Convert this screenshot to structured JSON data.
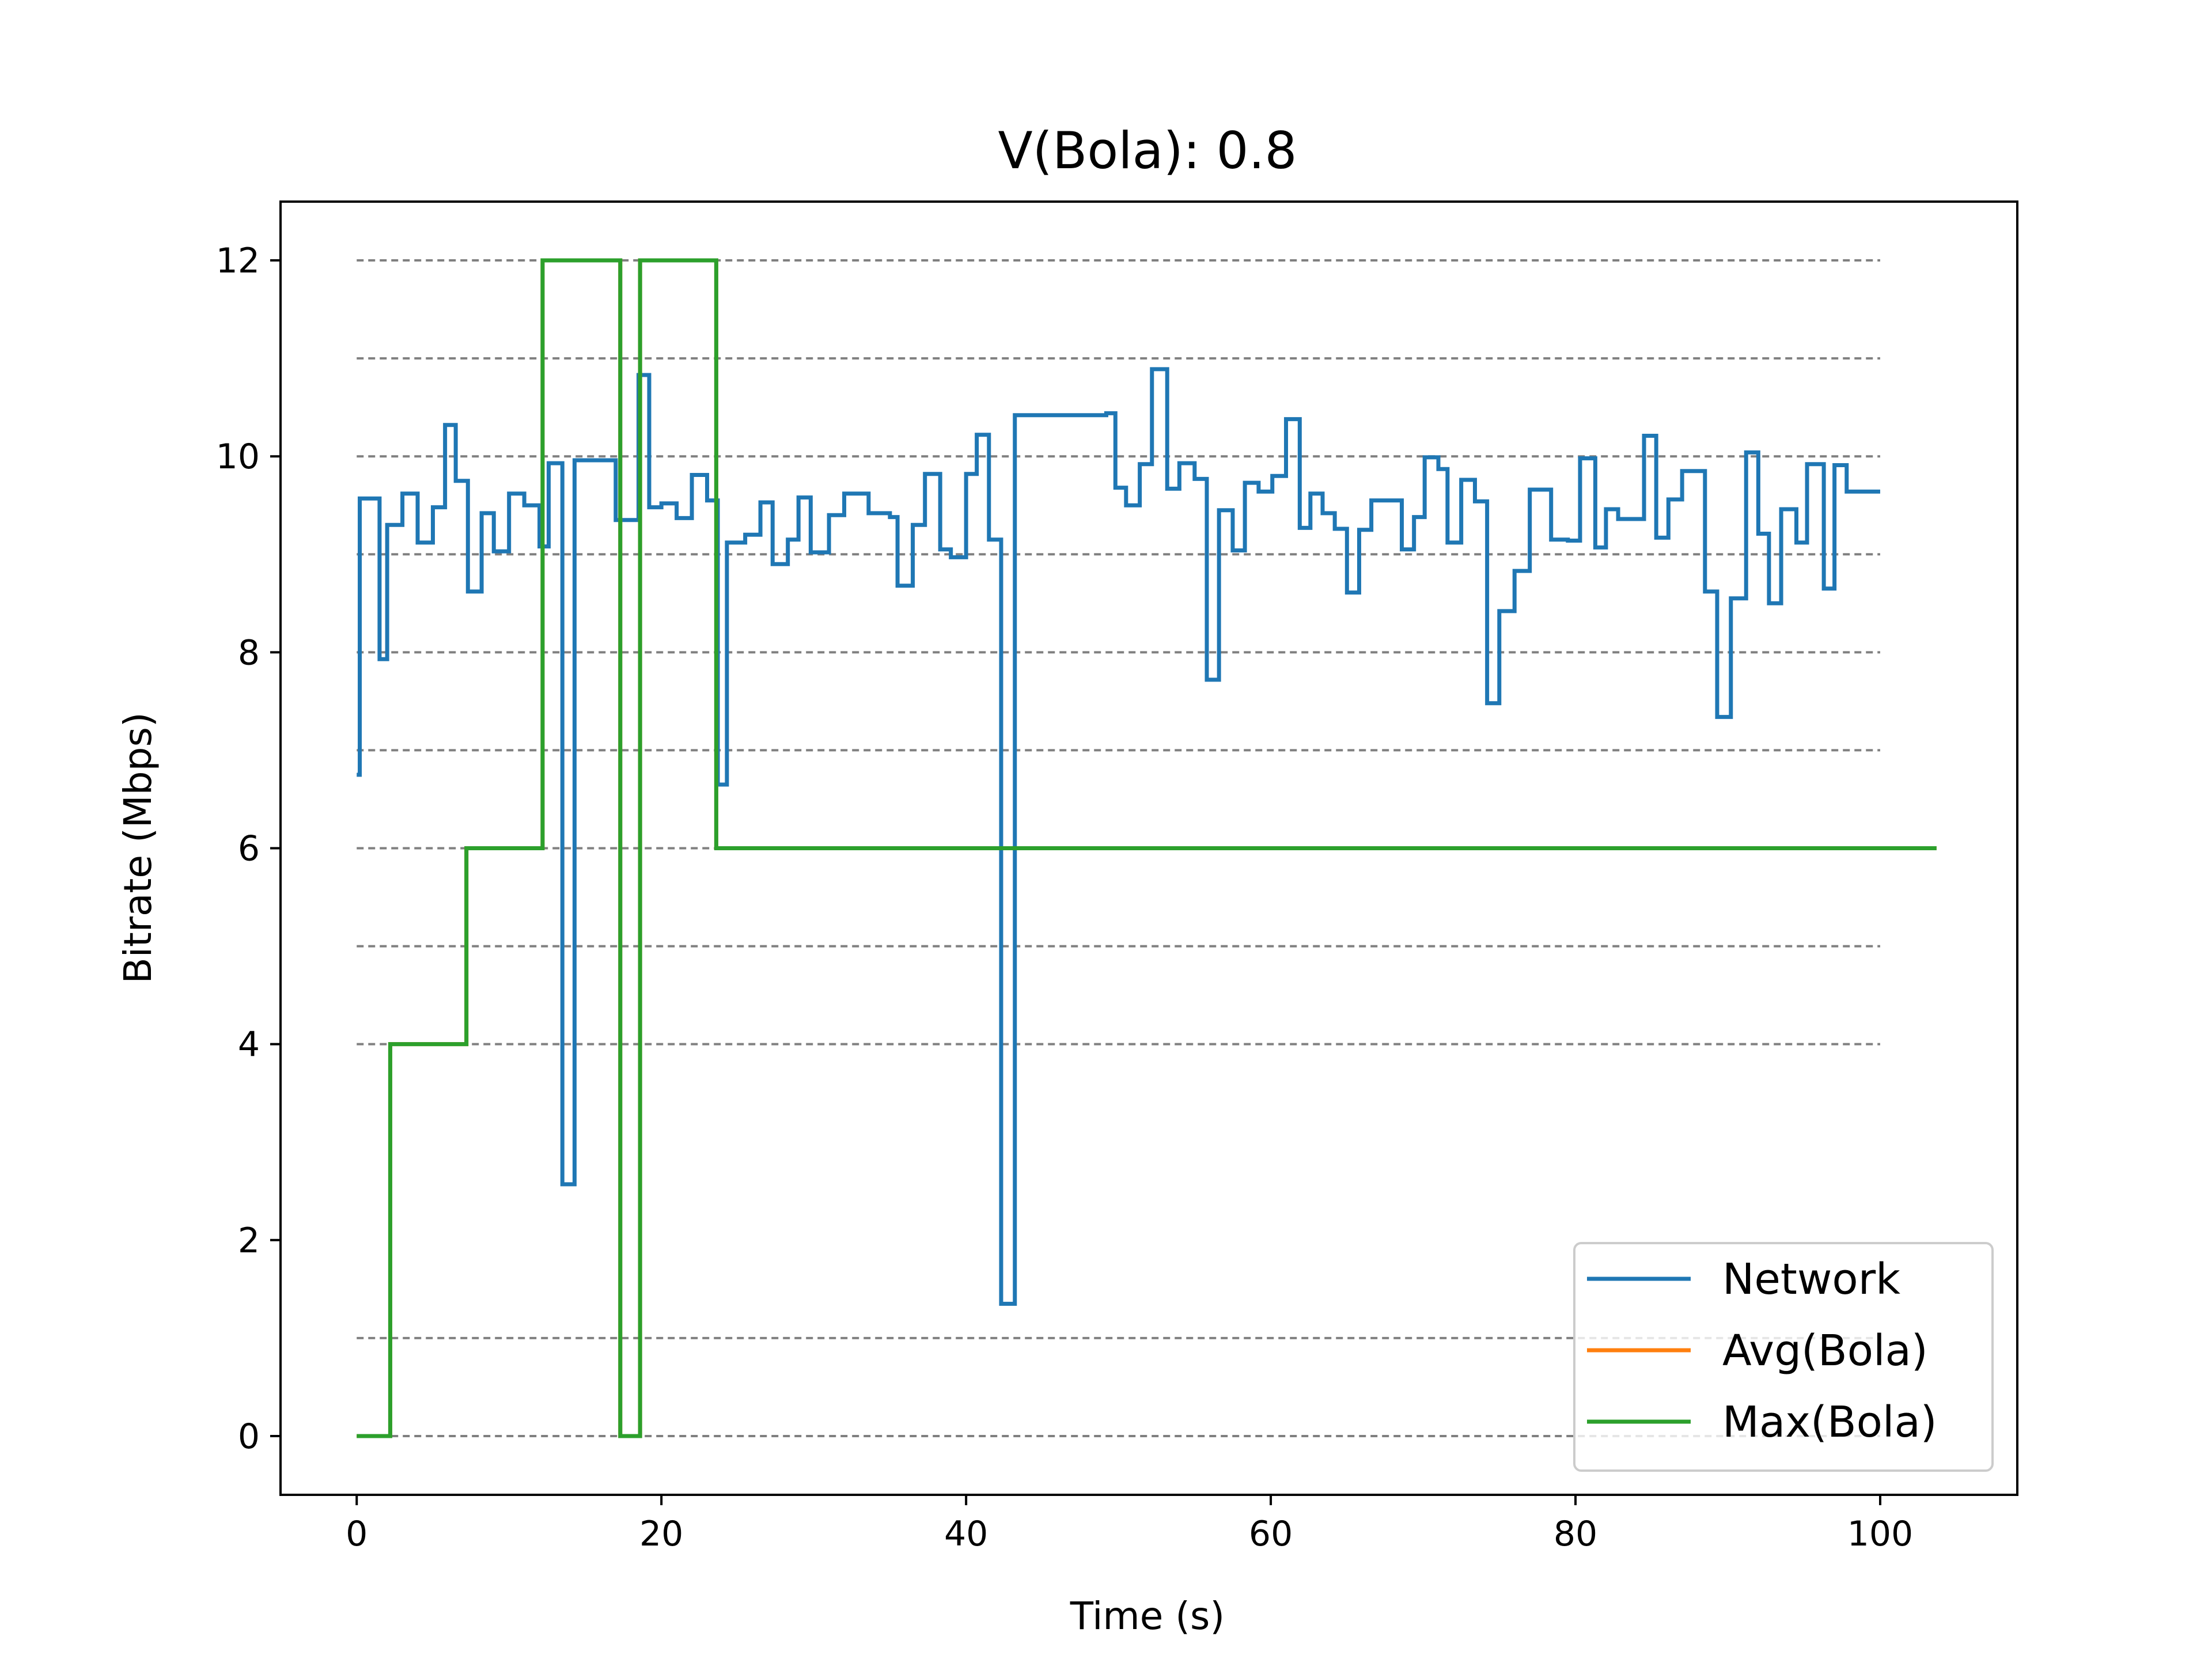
{
  "chart_data": {
    "type": "line",
    "title": "V(Bola): 0.8",
    "xlabel": "Time (s)",
    "ylabel": "Bitrate (Mbps)",
    "xlim": [
      -5,
      109
    ],
    "ylim": [
      -0.6,
      12.6
    ],
    "xticks": [
      0,
      20,
      40,
      60,
      80,
      100
    ],
    "yticks": [
      0,
      2,
      4,
      6,
      8,
      10,
      12
    ],
    "reference_lines": [
      0,
      1,
      4,
      5,
      6,
      7,
      8,
      9,
      10,
      11,
      12
    ],
    "reference_lines_x_range": [
      0,
      100
    ],
    "grid": false,
    "legend_position": "lower-right",
    "series": [
      {
        "name": "Network",
        "color": "#1f77b4",
        "step": true,
        "points": [
          [
            0,
            6.75
          ],
          [
            0.2,
            9.57
          ],
          [
            1.5,
            7.93
          ],
          [
            2,
            9.3
          ],
          [
            3,
            9.62
          ],
          [
            4,
            9.12
          ],
          [
            5,
            9.48
          ],
          [
            5.8,
            10.32
          ],
          [
            6.5,
            9.75
          ],
          [
            7.3,
            8.62
          ],
          [
            8.2,
            9.42
          ],
          [
            9,
            9.03
          ],
          [
            10,
            9.62
          ],
          [
            11,
            9.5
          ],
          [
            12,
            9.08
          ],
          [
            12.6,
            9.93
          ],
          [
            13.5,
            2.57
          ],
          [
            14.3,
            9.96
          ],
          [
            17,
            9.35
          ],
          [
            18.5,
            10.83
          ],
          [
            19.2,
            9.48
          ],
          [
            20,
            9.52
          ],
          [
            21,
            9.37
          ],
          [
            22,
            9.81
          ],
          [
            23,
            9.55
          ],
          [
            23.7,
            6.65
          ],
          [
            24.3,
            9.12
          ],
          [
            25.5,
            9.2
          ],
          [
            26.5,
            9.53
          ],
          [
            27.3,
            8.9
          ],
          [
            28.3,
            9.15
          ],
          [
            29,
            9.58
          ],
          [
            29.8,
            9.02
          ],
          [
            31,
            9.4
          ],
          [
            32,
            9.62
          ],
          [
            33.6,
            9.42
          ],
          [
            35,
            9.38
          ],
          [
            35.5,
            8.68
          ],
          [
            36.5,
            9.3
          ],
          [
            37.3,
            9.82
          ],
          [
            38.3,
            9.05
          ],
          [
            39,
            8.97
          ],
          [
            40,
            9.82
          ],
          [
            40.7,
            10.22
          ],
          [
            41.5,
            9.15
          ],
          [
            42.3,
            1.35
          ],
          [
            43.2,
            10.42
          ],
          [
            49.2,
            10.44
          ],
          [
            49.8,
            9.68
          ],
          [
            50.5,
            9.5
          ],
          [
            51.4,
            9.92
          ],
          [
            52.2,
            10.89
          ],
          [
            53.2,
            9.67
          ],
          [
            54,
            9.93
          ],
          [
            55,
            9.77
          ],
          [
            55.8,
            7.72
          ],
          [
            56.6,
            9.45
          ],
          [
            57.5,
            9.04
          ],
          [
            58.3,
            9.73
          ],
          [
            59.2,
            9.64
          ],
          [
            60.1,
            9.8
          ],
          [
            61,
            10.38
          ],
          [
            61.9,
            9.27
          ],
          [
            62.6,
            9.62
          ],
          [
            63.4,
            9.42
          ],
          [
            64.2,
            9.26
          ],
          [
            65,
            8.61
          ],
          [
            65.8,
            9.25
          ],
          [
            66.6,
            9.55
          ],
          [
            68.6,
            9.05
          ],
          [
            69.4,
            9.38
          ],
          [
            70.1,
            9.99
          ],
          [
            71,
            9.87
          ],
          [
            71.6,
            9.12
          ],
          [
            72.5,
            9.76
          ],
          [
            73.4,
            9.54
          ],
          [
            74.2,
            7.48
          ],
          [
            75,
            8.42
          ],
          [
            76,
            8.83
          ],
          [
            77,
            9.66
          ],
          [
            78.4,
            9.15
          ],
          [
            79.5,
            9.14
          ],
          [
            80.3,
            9.98
          ],
          [
            81.3,
            9.07
          ],
          [
            82,
            9.46
          ],
          [
            82.8,
            9.36
          ],
          [
            83.5,
            9.36
          ],
          [
            84.5,
            10.21
          ],
          [
            85.3,
            9.17
          ],
          [
            86.1,
            9.56
          ],
          [
            87,
            9.85
          ],
          [
            88.5,
            8.62
          ],
          [
            89.3,
            7.34
          ],
          [
            90.2,
            8.55
          ],
          [
            91.2,
            10.04
          ],
          [
            92,
            9.21
          ],
          [
            92.7,
            8.5
          ],
          [
            93.5,
            9.46
          ],
          [
            94.5,
            9.12
          ],
          [
            95.2,
            9.92
          ],
          [
            96.3,
            8.65
          ],
          [
            97,
            9.91
          ],
          [
            97.8,
            9.64
          ],
          [
            100,
            9.64
          ]
        ]
      },
      {
        "name": "Avg(Bola)",
        "color": "#ff7f0e",
        "step": true,
        "points": [
          [
            0,
            0
          ],
          [
            2.2,
            4
          ],
          [
            7.2,
            6
          ],
          [
            12.2,
            12
          ],
          [
            17.3,
            0
          ],
          [
            18.6,
            12
          ],
          [
            23.6,
            6
          ],
          [
            103.7,
            6
          ]
        ]
      },
      {
        "name": "Max(Bola)",
        "color": "#2ca02c",
        "step": true,
        "points": [
          [
            0,
            0
          ],
          [
            2.2,
            4
          ],
          [
            7.2,
            6
          ],
          [
            12.2,
            12
          ],
          [
            17.3,
            0
          ],
          [
            18.6,
            12
          ],
          [
            23.6,
            6
          ],
          [
            103.7,
            6
          ]
        ]
      }
    ]
  }
}
